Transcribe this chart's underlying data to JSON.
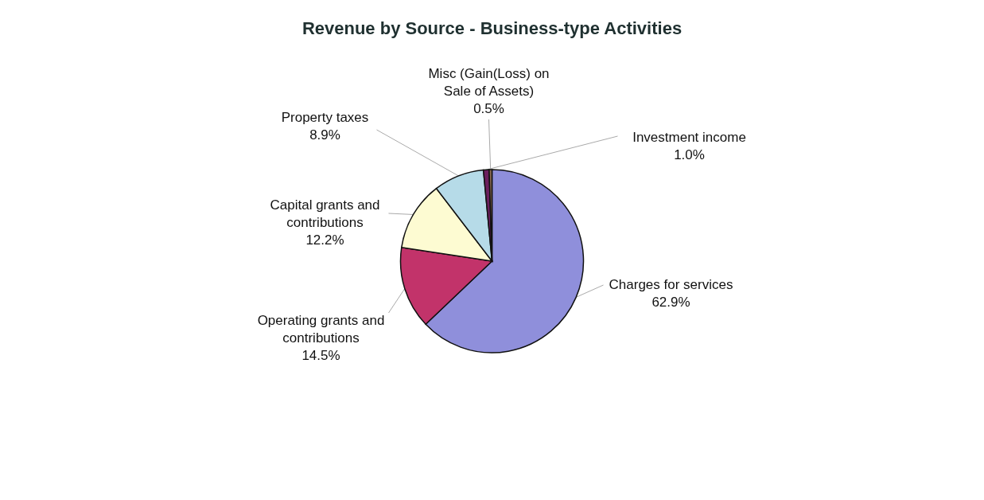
{
  "chart_data": {
    "type": "pie",
    "title": "Revenue by Source - Business-type Activities",
    "categories": [
      "Charges for services",
      "Operating grants and contributions",
      "Capital grants and contributions",
      "Property taxes",
      "Investment income",
      "Misc (Gain(Loss) on Sale of Assets)"
    ],
    "values": [
      62.9,
      14.5,
      12.2,
      8.9,
      1.0,
      0.5
    ],
    "value_labels": [
      "62.9%",
      "14.5%",
      "12.2%",
      "8.9%",
      "1.0%",
      "0.5%"
    ],
    "colors": [
      "#8f8fdb",
      "#c2336a",
      "#fdfbd2",
      "#b6dbe8",
      "#6b1f5e",
      "#8a6a50"
    ]
  }
}
